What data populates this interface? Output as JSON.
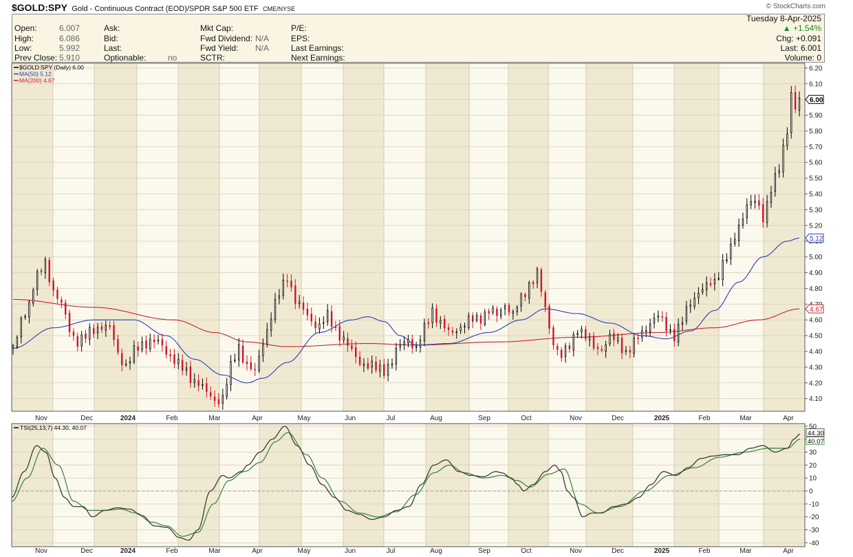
{
  "header": {
    "symbol": "$GOLD:SPY",
    "description": "Gold - Continuous Contract (EOD)/SPDR S&P 500 ETF",
    "exchange": "CME/NYSE",
    "watermark": "© StockCharts.com"
  },
  "info": {
    "col1": [
      {
        "label": "Open:",
        "value": "6.007"
      },
      {
        "label": "High:",
        "value": "6.086"
      },
      {
        "label": "Low:",
        "value": "5.992"
      },
      {
        "label": "Prev Close:",
        "value": "5.910"
      }
    ],
    "col2": [
      {
        "label": "Ask:",
        "value": ""
      },
      {
        "label": "Bid:",
        "value": ""
      },
      {
        "label": "Last:",
        "value": ""
      },
      {
        "label": "Optionable:",
        "value": "no"
      }
    ],
    "col3": [
      {
        "label": "Mkt Cap:",
        "value": ""
      },
      {
        "label": "Fwd Dividend:",
        "value": "N/A"
      },
      {
        "label": "Fwd Yield:",
        "value": "N/A"
      },
      {
        "label": "SCTR:",
        "value": ""
      }
    ],
    "col4": [
      {
        "label": "P/E:"
      },
      {
        "label": "EPS:"
      },
      {
        "label": "Last Earnings:"
      },
      {
        "label": "Next Earnings:"
      }
    ],
    "date": "Tuesday  8-Apr-2025",
    "change_pct": "+1.54%",
    "chg": "Chg: +0.091",
    "last": "Last:  6.001",
    "volume": "Volume:   0"
  },
  "chart_data": [
    {
      "type": "candlestick",
      "legend": [
        {
          "name": "$GOLD:SPY (Daily) 6.00",
          "color": "#000000"
        },
        {
          "name": "MA(50) 5.12",
          "color": "#2b3bb5"
        },
        {
          "name": "MA(200) 4.67",
          "color": "#c8202c"
        }
      ],
      "ylim": [
        4.02,
        6.23
      ],
      "yticks": [
        4.1,
        4.2,
        4.3,
        4.4,
        4.5,
        4.6,
        4.7,
        4.8,
        4.9,
        5.0,
        5.1,
        5.2,
        5.3,
        5.4,
        5.5,
        5.6,
        5.7,
        5.8,
        5.9,
        6.0,
        6.1,
        6.2
      ],
      "ytick_labels": [
        "4.10",
        "4.20",
        "4.30",
        "4.40",
        "4.50",
        "4.60",
        "4.70",
        "4.80",
        "4.90",
        "5.00",
        "5.10",
        "5.20",
        "5.30",
        "5.40",
        "5.50",
        "5.60",
        "5.70",
        "5.80",
        "5.90",
        "6.00",
        "6.10",
        "6.20"
      ],
      "x_labels": [
        "Nov",
        "Dec",
        "2024",
        "Feb",
        "Mar",
        "Apr",
        "May",
        "Jun",
        "Jul",
        "Aug",
        "Sep",
        "Oct",
        "Nov",
        "Dec",
        "2025",
        "Feb",
        "Mar",
        "Apr"
      ],
      "x_label_bold": [
        false,
        false,
        true,
        false,
        false,
        false,
        false,
        false,
        false,
        false,
        false,
        false,
        false,
        false,
        true,
        false,
        false,
        false
      ],
      "price_knots": [
        [
          0,
          4.42
        ],
        [
          6,
          4.66
        ],
        [
          12,
          4.87
        ],
        [
          16,
          4.97
        ],
        [
          20,
          4.8
        ],
        [
          24,
          4.7
        ],
        [
          28,
          4.55
        ],
        [
          32,
          4.48
        ],
        [
          36,
          4.5
        ],
        [
          40,
          4.55
        ],
        [
          44,
          4.58
        ],
        [
          48,
          4.55
        ],
        [
          52,
          4.4
        ],
        [
          56,
          4.32
        ],
        [
          60,
          4.4
        ],
        [
          64,
          4.45
        ],
        [
          68,
          4.48
        ],
        [
          72,
          4.45
        ],
        [
          76,
          4.4
        ],
        [
          80,
          4.35
        ],
        [
          84,
          4.28
        ],
        [
          88,
          4.23
        ],
        [
          92,
          4.2
        ],
        [
          96,
          4.12
        ],
        [
          100,
          4.08
        ],
        [
          104,
          4.1
        ],
        [
          108,
          4.28
        ],
        [
          112,
          4.42
        ],
        [
          116,
          4.3
        ],
        [
          120,
          4.25
        ],
        [
          124,
          4.45
        ],
        [
          128,
          4.62
        ],
        [
          132,
          4.75
        ],
        [
          136,
          4.88
        ],
        [
          140,
          4.72
        ],
        [
          144,
          4.65
        ],
        [
          148,
          4.6
        ],
        [
          152,
          4.56
        ],
        [
          156,
          4.62
        ],
        [
          160,
          4.55
        ],
        [
          164,
          4.48
        ],
        [
          168,
          4.4
        ],
        [
          172,
          4.35
        ],
        [
          176,
          4.32
        ],
        [
          180,
          4.3
        ],
        [
          184,
          4.3
        ],
        [
          188,
          4.35
        ],
        [
          192,
          4.45
        ],
        [
          196,
          4.5
        ],
        [
          200,
          4.42
        ],
        [
          204,
          4.55
        ],
        [
          208,
          4.68
        ],
        [
          212,
          4.58
        ],
        [
          216,
          4.52
        ],
        [
          220,
          4.55
        ],
        [
          224,
          4.57
        ],
        [
          228,
          4.6
        ],
        [
          232,
          4.62
        ],
        [
          236,
          4.65
        ],
        [
          240,
          4.62
        ],
        [
          244,
          4.7
        ],
        [
          248,
          4.62
        ],
        [
          252,
          4.72
        ],
        [
          256,
          4.82
        ],
        [
          260,
          4.88
        ],
        [
          264,
          4.65
        ],
        [
          268,
          4.45
        ],
        [
          272,
          4.35
        ],
        [
          276,
          4.42
        ],
        [
          280,
          4.55
        ],
        [
          284,
          4.48
        ],
        [
          288,
          4.42
        ],
        [
          292,
          4.42
        ],
        [
          296,
          4.48
        ],
        [
          300,
          4.46
        ],
        [
          304,
          4.4
        ],
        [
          308,
          4.45
        ],
        [
          312,
          4.52
        ],
        [
          316,
          4.6
        ],
        [
          320,
          4.63
        ],
        [
          324,
          4.56
        ],
        [
          328,
          4.52
        ],
        [
          332,
          4.6
        ],
        [
          336,
          4.72
        ],
        [
          340,
          4.8
        ],
        [
          344,
          4.82
        ],
        [
          348,
          4.85
        ],
        [
          352,
          4.98
        ],
        [
          356,
          5.05
        ],
        [
          360,
          5.2
        ],
        [
          364,
          5.35
        ],
        [
          368,
          5.35
        ],
        [
          372,
          5.25
        ],
        [
          376,
          5.45
        ],
        [
          380,
          5.55
        ],
        [
          384,
          5.8
        ],
        [
          386,
          6.05
        ],
        [
          388,
          5.95
        ],
        [
          390,
          6.0
        ]
      ],
      "ma50_knots": [
        [
          0,
          4.42
        ],
        [
          20,
          4.55
        ],
        [
          40,
          4.6
        ],
        [
          60,
          4.6
        ],
        [
          76,
          4.5
        ],
        [
          90,
          4.35
        ],
        [
          104,
          4.25
        ],
        [
          116,
          4.2
        ],
        [
          124,
          4.23
        ],
        [
          136,
          4.33
        ],
        [
          152,
          4.52
        ],
        [
          168,
          4.6
        ],
        [
          176,
          4.62
        ],
        [
          184,
          4.59
        ],
        [
          192,
          4.5
        ],
        [
          200,
          4.44
        ],
        [
          216,
          4.45
        ],
        [
          236,
          4.52
        ],
        [
          252,
          4.6
        ],
        [
          264,
          4.67
        ],
        [
          280,
          4.64
        ],
        [
          296,
          4.58
        ],
        [
          312,
          4.5
        ],
        [
          324,
          4.48
        ],
        [
          336,
          4.53
        ],
        [
          348,
          4.66
        ],
        [
          360,
          4.84
        ],
        [
          372,
          5.0
        ],
        [
          384,
          5.1
        ],
        [
          390,
          5.12
        ]
      ],
      "ma200_knots": [
        [
          0,
          4.73
        ],
        [
          40,
          4.68
        ],
        [
          80,
          4.6
        ],
        [
          100,
          4.52
        ],
        [
          116,
          4.46
        ],
        [
          136,
          4.43
        ],
        [
          176,
          4.45
        ],
        [
          200,
          4.44
        ],
        [
          240,
          4.46
        ],
        [
          280,
          4.49
        ],
        [
          320,
          4.52
        ],
        [
          348,
          4.55
        ],
        [
          370,
          4.6
        ],
        [
          390,
          4.67
        ]
      ],
      "last_value": "6.00",
      "ma50_value": "5.12",
      "ma200_value": "4.67"
    },
    {
      "type": "line",
      "legend": [
        {
          "name": "TSI(25,13,7) 44.30, 40.07",
          "color": "#000000"
        }
      ],
      "ylim": [
        -43,
        52
      ],
      "yticks": [
        -40,
        -30,
        -20,
        -10,
        0,
        10,
        20,
        30,
        40,
        50
      ],
      "ytick_labels": [
        "-40",
        "-30",
        "-20",
        "-10",
        "0",
        "10",
        "20",
        "30",
        "40",
        "50"
      ],
      "tsi_knots": [
        [
          0,
          -5
        ],
        [
          8,
          15
        ],
        [
          16,
          35
        ],
        [
          22,
          30
        ],
        [
          28,
          10
        ],
        [
          34,
          -5
        ],
        [
          40,
          -12
        ],
        [
          46,
          -12
        ],
        [
          52,
          -20
        ],
        [
          60,
          -15
        ],
        [
          68,
          -13
        ],
        [
          76,
          -14
        ],
        [
          84,
          -19
        ],
        [
          92,
          -27
        ],
        [
          100,
          -28
        ],
        [
          108,
          -36
        ],
        [
          114,
          -38
        ],
        [
          120,
          -30
        ],
        [
          128,
          0
        ],
        [
          136,
          12
        ],
        [
          140,
          10
        ],
        [
          148,
          15
        ],
        [
          152,
          20
        ],
        [
          160,
          30
        ],
        [
          168,
          40
        ],
        [
          176,
          50
        ],
        [
          184,
          35
        ],
        [
          192,
          20
        ],
        [
          200,
          5
        ],
        [
          208,
          -5
        ],
        [
          216,
          -15
        ],
        [
          224,
          -18
        ],
        [
          232,
          -22
        ],
        [
          240,
          -20
        ],
        [
          248,
          -15
        ],
        [
          256,
          -12
        ],
        [
          264,
          5
        ],
        [
          272,
          20
        ],
        [
          280,
          24
        ],
        [
          288,
          15
        ],
        [
          296,
          12
        ],
        [
          304,
          11
        ],
        [
          312,
          15
        ],
        [
          316,
          14
        ],
        [
          322,
          10
        ],
        [
          326,
          5
        ],
        [
          330,
          0
        ],
        [
          336,
          5
        ],
        [
          344,
          15
        ],
        [
          350,
          20
        ],
        [
          354,
          15
        ],
        [
          358,
          0
        ],
        [
          362,
          -5
        ],
        [
          368,
          -20
        ],
        [
          374,
          -17
        ],
        [
          380,
          -17
        ],
        [
          388,
          -12
        ],
        [
          396,
          -10
        ],
        [
          404,
          -5
        ],
        [
          412,
          5
        ],
        [
          420,
          15
        ],
        [
          428,
          12
        ],
        [
          436,
          18
        ],
        [
          444,
          25
        ],
        [
          452,
          27
        ],
        [
          460,
          28
        ],
        [
          468,
          28
        ],
        [
          476,
          33
        ],
        [
          484,
          35
        ],
        [
          492,
          30
        ],
        [
          500,
          33
        ],
        [
          504,
          40
        ],
        [
          508,
          44
        ]
      ],
      "sig_knots": [
        [
          0,
          -8
        ],
        [
          10,
          10
        ],
        [
          20,
          33
        ],
        [
          30,
          20
        ],
        [
          40,
          -8
        ],
        [
          50,
          -15
        ],
        [
          60,
          -15
        ],
        [
          70,
          -14
        ],
        [
          80,
          -17
        ],
        [
          90,
          -24
        ],
        [
          100,
          -27
        ],
        [
          110,
          -35
        ],
        [
          120,
          -32
        ],
        [
          130,
          -10
        ],
        [
          140,
          8
        ],
        [
          150,
          15
        ],
        [
          160,
          22
        ],
        [
          170,
          38
        ],
        [
          178,
          45
        ],
        [
          190,
          28
        ],
        [
          200,
          10
        ],
        [
          212,
          -8
        ],
        [
          224,
          -17
        ],
        [
          236,
          -20
        ],
        [
          248,
          -16
        ],
        [
          260,
          -3
        ],
        [
          272,
          14
        ],
        [
          282,
          20
        ],
        [
          292,
          14
        ],
        [
          304,
          10
        ],
        [
          316,
          12
        ],
        [
          326,
          8
        ],
        [
          334,
          3
        ],
        [
          346,
          13
        ],
        [
          356,
          17
        ],
        [
          366,
          -10
        ],
        [
          378,
          -17
        ],
        [
          392,
          -12
        ],
        [
          408,
          0
        ],
        [
          424,
          12
        ],
        [
          440,
          18
        ],
        [
          456,
          26
        ],
        [
          472,
          30
        ],
        [
          488,
          33
        ],
        [
          500,
          33
        ],
        [
          508,
          40
        ]
      ],
      "tsi_value": "44.30",
      "sig_value": "40.07"
    }
  ]
}
